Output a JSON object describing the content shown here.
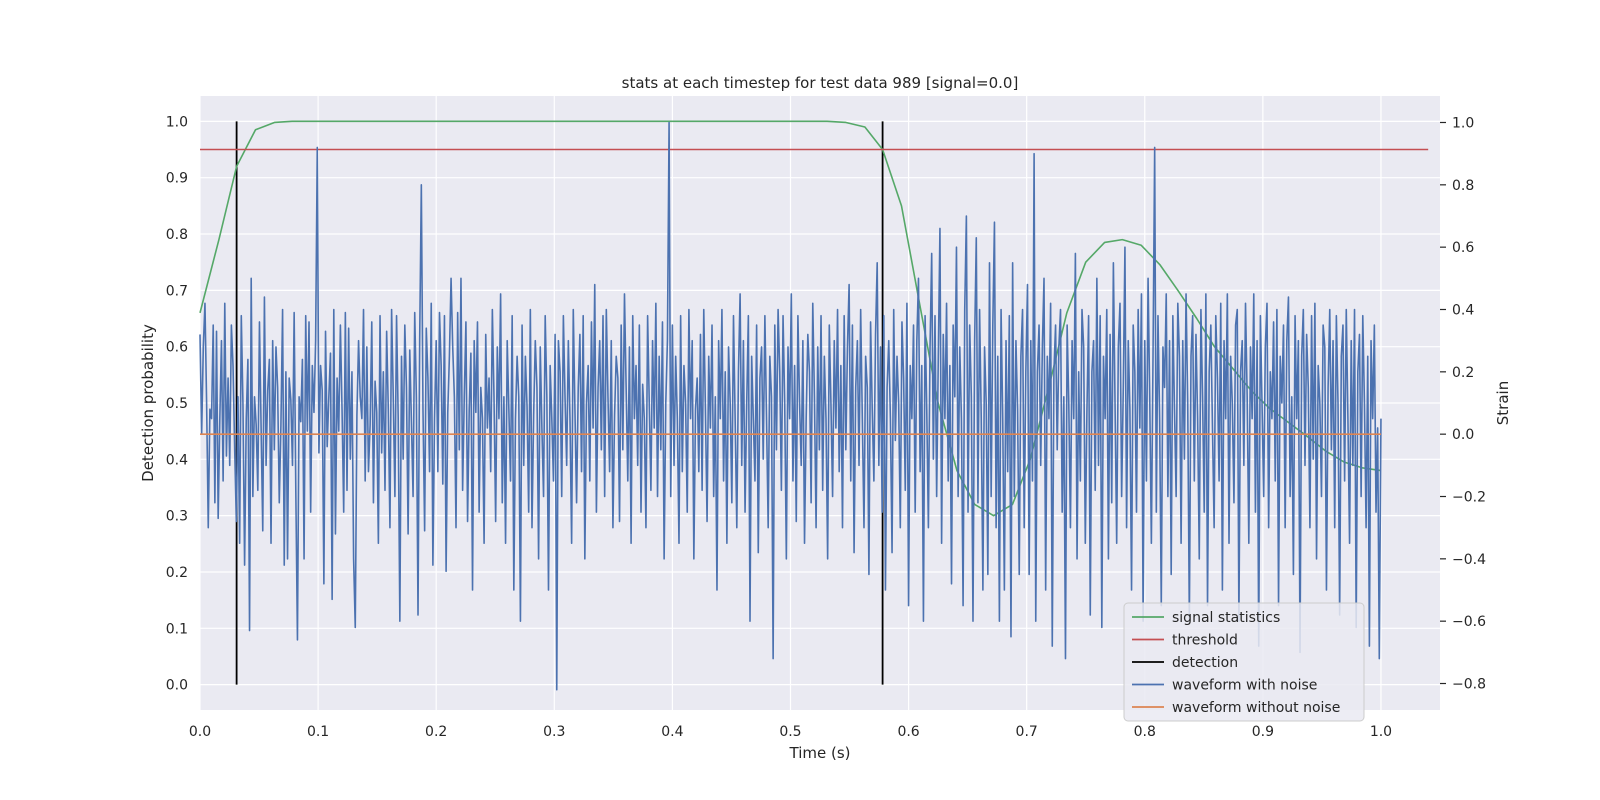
{
  "chart_data": {
    "type": "line",
    "title": "stats at each timestep for test data 989 [signal=0.0]",
    "xlabel": "Time (s)",
    "ylabel": "Detection probability",
    "y2label": "Strain",
    "xlim": [
      0.0,
      1.05
    ],
    "ylim": [
      -0.045,
      1.045
    ],
    "y2lim": [
      -0.885,
      1.085
    ],
    "xticks": [
      "0.0",
      "0.1",
      "0.2",
      "0.3",
      "0.4",
      "0.5",
      "0.6",
      "0.7",
      "0.8",
      "0.9",
      "1.0"
    ],
    "yticks": [
      "0.0",
      "0.1",
      "0.2",
      "0.3",
      "0.4",
      "0.5",
      "0.6",
      "0.7",
      "0.8",
      "0.9",
      "1.0"
    ],
    "y2ticks": [
      "−0.8",
      "−0.6",
      "−0.4",
      "−0.2",
      "0.0",
      "0.2",
      "0.4",
      "0.6",
      "0.8",
      "1.0"
    ],
    "grid": true,
    "legend_position": "lower-right",
    "series": [
      {
        "name": "signal statistics",
        "color": "#55a868",
        "axis": "left",
        "x": [
          0.0,
          0.016,
          0.031,
          0.047,
          0.063,
          0.078,
          0.094,
          0.109,
          0.125,
          0.141,
          0.156,
          0.172,
          0.188,
          0.203,
          0.219,
          0.234,
          0.25,
          0.266,
          0.281,
          0.297,
          0.313,
          0.328,
          0.344,
          0.359,
          0.375,
          0.391,
          0.406,
          0.422,
          0.438,
          0.453,
          0.469,
          0.484,
          0.5,
          0.516,
          0.531,
          0.547,
          0.563,
          0.578,
          0.594,
          0.609,
          0.625,
          0.641,
          0.656,
          0.672,
          0.688,
          0.703,
          0.719,
          0.734,
          0.75,
          0.766,
          0.781,
          0.797,
          0.813,
          0.828,
          0.844,
          0.859,
          0.875,
          0.891,
          0.906,
          0.922,
          0.938,
          0.953,
          0.969,
          0.984,
          1.0
        ],
        "values": [
          0.66,
          0.79,
          0.92,
          0.985,
          0.998,
          1.0,
          1.0,
          1.0,
          1.0,
          1.0,
          1.0,
          1.0,
          1.0,
          1.0,
          1.0,
          1.0,
          1.0,
          1.0,
          1.0,
          1.0,
          1.0,
          1.0,
          1.0,
          1.0,
          1.0,
          1.0,
          1.0,
          1.0,
          1.0,
          1.0,
          1.0,
          1.0,
          1.0,
          1.0,
          1.0,
          0.998,
          0.99,
          0.95,
          0.85,
          0.68,
          0.5,
          0.38,
          0.32,
          0.3,
          0.32,
          0.4,
          0.53,
          0.66,
          0.75,
          0.785,
          0.79,
          0.78,
          0.745,
          0.7,
          0.65,
          0.6,
          0.56,
          0.52,
          0.49,
          0.465,
          0.44,
          0.415,
          0.395,
          0.385,
          0.38
        ]
      },
      {
        "name": "threshold",
        "color": "#c44e52",
        "axis": "left",
        "x": [
          0.0,
          1.04
        ],
        "values": [
          0.95,
          0.95
        ]
      },
      {
        "name": "detection",
        "color": "#000000",
        "axis": "left",
        "x": [
          0.031,
          0.578
        ],
        "values": [
          1.0,
          1.0
        ]
      },
      {
        "name": "waveform with noise",
        "color": "#4c72b0",
        "axis": "right",
        "x_start": 0.0,
        "x_end": 1.0,
        "values": [
          0.32,
          0.0,
          0.28,
          0.42,
          0.1,
          -0.3,
          0.08,
          0.05,
          0.35,
          -0.22,
          0.33,
          -0.27,
          0.05,
          0.3,
          -0.15,
          0.42,
          -0.07,
          0.18,
          -0.1,
          0.35,
          0.22,
          -0.05,
          -0.28,
          0.12,
          -0.35,
          0.38,
          0.1,
          -0.42,
          0.05,
          0.24,
          -0.63,
          0.5,
          -0.2,
          0.12,
          0.03,
          -0.18,
          0.36,
          0.02,
          -0.31,
          0.44,
          -0.1,
          0.14,
          0.24,
          -0.35,
          0.3,
          -0.05,
          0.28,
          0.15,
          -0.22,
          0.03,
          0.4,
          -0.42,
          0.2,
          -0.4,
          0.18,
          0.11,
          -0.1,
          0.39,
          -0.18,
          -0.66,
          0.12,
          0.04,
          0.24,
          -0.4,
          0.38,
          0.01,
          0.36,
          -0.25,
          0.22,
          0.07,
          0.3,
          0.92,
          -0.06,
          0.22,
          0.14,
          -0.48,
          0.33,
          -0.04,
          0.12,
          0.26,
          -0.53,
          0.4,
          -0.32,
          0.18,
          0.01,
          0.35,
          0.08,
          -0.25,
          0.39,
          -0.18,
          0.34,
          -0.08,
          0.2,
          -0.4,
          -0.62,
          0.06,
          0.3,
          0.12,
          0.05,
          0.4,
          -0.15,
          0.28,
          -0.12,
          0.03,
          0.36,
          -0.22,
          0.17,
          0.07,
          -0.35,
          0.38,
          -0.06,
          0.2,
          -0.18,
          0.33,
          0.08,
          -0.3,
          0.4,
          0.12,
          -0.2,
          0.38,
          0.05,
          -0.6,
          0.25,
          -0.08,
          0.35,
          0.15,
          -0.32,
          0.27,
          0.04,
          -0.2,
          0.39,
          0.12,
          -0.58,
          0.3,
          0.8,
          0.08,
          -0.31,
          0.34,
          0.18,
          -0.12,
          0.42,
          -0.42,
          0.05,
          0.3,
          -0.12,
          0.39,
          0.22,
          -0.16,
          0.38,
          -0.44,
          0.07,
          0.25,
          0.5,
          0.28,
          0.12,
          -0.3,
          0.39,
          -0.05,
          0.5,
          -0.18,
          0.12,
          0.36,
          -0.28,
          0.08,
          0.26,
          -0.5,
          0.3,
          0.07,
          0.36,
          -0.25,
          0.15,
          0.05,
          -0.35,
          0.32,
          0.02,
          0.18,
          -0.12,
          0.4,
          0.12,
          -0.28,
          0.28,
          0.05,
          0.45,
          -0.22,
          0.12,
          -0.35,
          0.3,
          0.08,
          -0.15,
          0.38,
          -0.5,
          0.05,
          0.25,
          0.12,
          -0.6,
          0.35,
          -0.1,
          0.25,
          0.09,
          -0.25,
          0.4,
          -0.3,
          0.06,
          0.3,
          0.15,
          -0.4,
          0.28,
          0.02,
          -0.2,
          0.38,
          0.12,
          -0.5,
          0.22,
          0.05,
          -0.15,
          0.32,
          -0.82,
          0.3,
          0.2,
          -0.2,
          0.38,
          0.12,
          -0.1,
          0.3,
          0.05,
          -0.35,
          0.4,
          0.08,
          -0.22,
          0.15,
          0.32,
          -0.12,
          0.38,
          -0.4,
          0.1,
          0.22,
          -0.15,
          0.36,
          0.02,
          0.48,
          -0.25,
          0.15,
          0.3,
          -0.05,
          0.38,
          -0.2,
          0.4,
          0.12,
          -0.12,
          0.3,
          -0.3,
          0.06,
          0.25,
          0.18,
          -0.28,
          0.35,
          -0.05,
          0.45,
          0.15,
          -0.15,
          0.28,
          -0.35,
          0.38,
          0.05,
          0.22,
          -0.1,
          0.35,
          -0.25,
          0.16,
          0.05,
          -0.3,
          0.38,
          0.1,
          -0.18,
          0.3,
          0.02,
          0.42,
          -0.2,
          0.25,
          -0.05,
          0.36,
          -0.4,
          0.1,
          0.3,
          1.0,
          -0.2,
          0.35,
          -0.1,
          0.25,
          0.05,
          -0.35,
          0.38,
          -0.12,
          0.22,
          0.1,
          -0.25,
          0.4,
          0.05,
          0.3,
          -0.4,
          0.08,
          0.18,
          -0.12,
          0.32,
          -0.18,
          0.4,
          0.08,
          -0.28,
          0.25,
          0.02,
          0.35,
          -0.2,
          0.12,
          -0.5,
          0.3,
          0.05,
          0.4,
          -0.15,
          0.2,
          -0.35,
          0.28,
          0.1,
          -0.22,
          0.38,
          0.05,
          -0.3,
          0.2,
          0.45,
          -0.1,
          0.3,
          -0.25,
          0.1,
          0.38,
          -0.6,
          0.25,
          0.05,
          -0.15,
          0.35,
          -0.38,
          0.18,
          0.28,
          -0.08,
          0.38,
          0.05,
          -0.3,
          0.25,
          0.12,
          -0.72,
          0.35,
          -0.05,
          0.4,
          0.2,
          -0.18,
          0.38,
          0.1,
          -0.4,
          0.28,
          0.05,
          0.45,
          -0.15,
          0.22,
          -0.28,
          0.38,
          0.1,
          -0.1,
          0.3,
          -0.35,
          0.05,
          0.32,
          0.2,
          -0.22,
          0.42,
          0.12,
          -0.3,
          0.28,
          -0.05,
          0.38,
          -0.18,
          0.25,
          0.05,
          -0.4,
          0.35,
          0.1,
          -0.2,
          0.3,
          0.02,
          0.4,
          -0.12,
          0.22,
          -0.3,
          0.38,
          -0.05,
          0.28,
          0.48,
          -0.15,
          0.35,
          -0.38,
          0.15,
          0.3,
          -0.1,
          0.4,
          0.05,
          -0.3,
          0.25,
          0.15,
          -0.45,
          0.36,
          0.08,
          -0.15,
          0.32,
          0.55,
          -0.1,
          0.28,
          -0.25,
          0.38,
          -0.5,
          0.15,
          0.3,
          0.05,
          -0.38,
          0.4,
          -0.02,
          0.25,
          0.1,
          -0.3,
          0.36,
          0.18,
          -0.18,
          0.42,
          -0.55,
          0.22,
          0.05,
          0.35,
          -0.25,
          0.3,
          0.5,
          -0.12,
          0.22,
          -0.6,
          0.38,
          0.08,
          -0.3,
          0.28,
          0.58,
          -0.08,
          0.38,
          -0.2,
          0.25,
          0.66,
          -0.35,
          0.32,
          0.05,
          0.42,
          -0.15,
          0.22,
          -0.48,
          0.35,
          0.12,
          0.6,
          -0.2,
          0.28,
          0.05,
          -0.55,
          0.4,
          0.7,
          -0.25,
          0.35,
          0.12,
          -0.6,
          0.3,
          0.63,
          -0.22,
          0.4,
          0.05,
          -0.5,
          0.28,
          0.1,
          -0.45,
          0.55,
          -0.2,
          0.35,
          0.68,
          -0.3,
          0.25,
          -0.6,
          0.4,
          0.05,
          -0.5,
          0.3,
          -0.12,
          0.38,
          -0.65,
          0.55,
          -0.2,
          0.3,
          0.08,
          -0.45,
          0.25,
          0.4,
          -0.3,
          0.2,
          0.48,
          -0.45,
          0.3,
          -0.15,
          0.9,
          -0.6,
          0.2,
          0.35,
          -0.1,
          0.28,
          0.5,
          -0.5,
          0.25,
          0.05,
          0.42,
          -0.68,
          0.2,
          0.35,
          -0.05,
          0.28,
          0.4,
          -0.25,
          0.12,
          -0.72,
          0.35,
          0.1,
          -0.3,
          0.3,
          0.05,
          0.58,
          -0.4,
          0.2,
          -0.15,
          0.4,
          0.28,
          -0.35,
          0.08,
          0.38,
          -0.58,
          0.2,
          0.3,
          -0.18,
          0.5,
          -0.1,
          0.38,
          -0.62,
          0.25,
          0.05,
          0.4,
          -0.4,
          0.32,
          -0.22,
          0.55,
          0.1,
          -0.35,
          0.28,
          0.42,
          -0.2,
          0.15,
          0.6,
          -0.3,
          0.3,
          0.08,
          -0.5,
          0.35,
          0.2,
          -0.25,
          0.4,
          0.02,
          0.45,
          -0.6,
          0.3,
          -0.15,
          0.5,
          0.12,
          -0.35,
          0.25,
          0.92,
          -0.25,
          0.38,
          0.05,
          -0.55,
          0.28,
          0.15,
          0.45,
          -0.2,
          0.3,
          -0.45,
          0.38,
          0.08,
          -0.2,
          0.42,
          0.25,
          -0.35,
          0.3,
          -0.08,
          0.45,
          0.1,
          -0.6,
          0.25,
          0.38,
          -0.15,
          0.32,
          0.05,
          -0.4,
          0.4,
          0.12,
          -0.25,
          0.45,
          -0.55,
          0.2,
          0.35,
          0.02,
          -0.3,
          0.38,
          0.18,
          -0.15,
          0.42,
          -0.5,
          0.3,
          0.05,
          0.45,
          -0.35,
          0.25,
          0.1,
          -0.22,
          0.35,
          0.4,
          -0.6,
          0.2,
          0.3,
          -0.1,
          0.42,
          0.12,
          -0.35,
          0.28,
          0.05,
          0.45,
          -0.25,
          0.3,
          -0.68,
          0.38,
          0.1,
          -0.2,
          0.28,
          0.42,
          -0.3,
          0.2,
          0.05,
          0.36,
          -0.15,
          0.4,
          -0.55,
          0.25,
          0.1,
          0.35,
          -0.3,
          0.3,
          0.44,
          -0.2,
          0.12,
          -0.45,
          0.38,
          0.05,
          0.3,
          -0.7,
          0.25,
          0.4,
          -0.1,
          0.32,
          0.15,
          -0.3,
          0.38,
          -0.08,
          0.42,
          -0.4,
          0.22,
          0.1,
          -0.2,
          0.35,
          0.28,
          -0.5,
          0.15,
          0.4,
          -0.05,
          0.3,
          -0.3,
          0.38,
          0.1,
          -0.58,
          0.25,
          0.35,
          -0.15,
          0.4,
          0.05,
          -0.35,
          0.3,
          -0.1,
          0.4,
          -0.62,
          0.2,
          0.32,
          -0.2,
          0.38,
          0.1,
          -0.3,
          0.25,
          -0.68,
          0.3,
          0.05,
          0.35,
          -0.25,
          0.02,
          -0.72,
          0.05
        ]
      },
      {
        "name": "waveform without noise",
        "color": "#dd8452",
        "axis": "right",
        "x": [
          0.0,
          1.0
        ],
        "values": [
          0.0,
          0.0
        ]
      }
    ],
    "legend": [
      "signal statistics",
      "threshold",
      "detection",
      "waveform with noise",
      "waveform without noise"
    ]
  }
}
